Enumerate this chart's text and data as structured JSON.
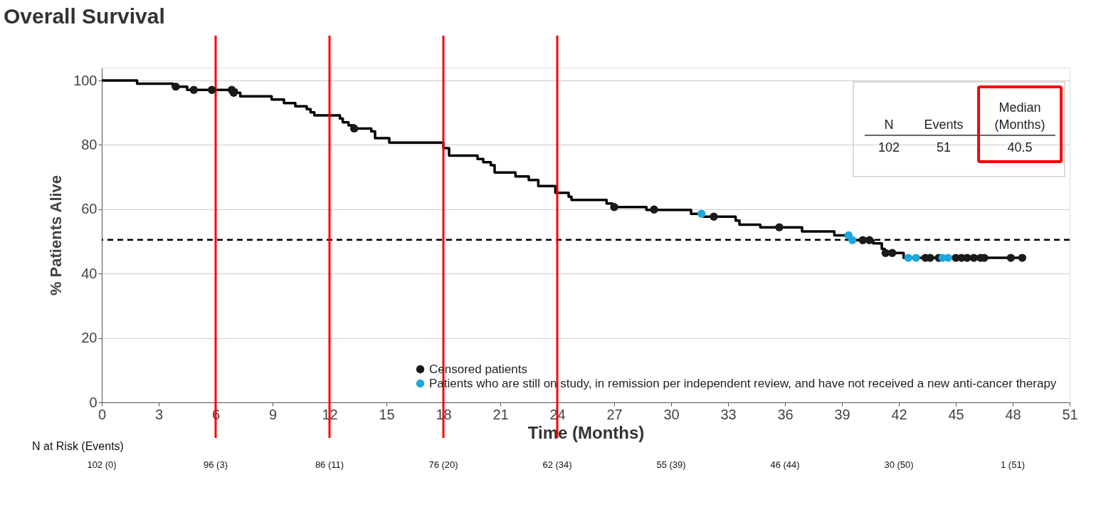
{
  "chart_data": {
    "type": "step",
    "title": "Overall Survival",
    "xlabel": "Time (Months)",
    "ylabel": "% Patients Alive",
    "xlim": [
      0,
      51
    ],
    "xticks": [
      0,
      3,
      6,
      9,
      12,
      15,
      18,
      21,
      24,
      27,
      30,
      33,
      36,
      39,
      42,
      45,
      48,
      51
    ],
    "ylim": [
      0,
      104
    ],
    "yticks": [
      0,
      20,
      40,
      60,
      80,
      100
    ],
    "grid": "y",
    "legend": "bottom right",
    "series": [
      {
        "color": "#000000",
        "x": [
          0,
          1.86,
          3.75,
          4.5,
          7.1,
          7.3,
          8.95,
          9.6,
          10.2,
          10.8,
          11.0,
          11.2,
          12.55,
          12.7,
          13.0,
          13.3,
          14.2,
          14.4,
          15.15,
          18.0,
          18.3,
          19.8,
          20.1,
          20.5,
          20.7,
          21.8,
          22.5,
          23.0,
          23.9,
          24.6,
          24.75,
          26.6,
          26.9,
          28.7,
          31.05,
          31.7,
          33.4,
          33.6,
          34.7,
          36.9,
          38.6,
          39.45,
          40.65,
          41.1,
          41.25,
          42.25,
          48.5
        ],
        "values": [
          100,
          99.0,
          98.1,
          97.1,
          96.2,
          95.1,
          94.1,
          93.0,
          92.0,
          91.1,
          90.1,
          89.2,
          88.2,
          87.0,
          86.1,
          85.1,
          84.2,
          82.1,
          80.7,
          79.0,
          76.7,
          75.6,
          74.6,
          73.7,
          71.4,
          70.2,
          69.1,
          67.2,
          65.1,
          63.9,
          62.9,
          61.8,
          60.7,
          59.8,
          58.6,
          57.7,
          56.5,
          55.2,
          54.4,
          53.1,
          51.9,
          50.4,
          49.4,
          47.7,
          46.4,
          44.9,
          44.9
        ]
      },
      {
        "type": "scatter",
        "name": "Censored patients",
        "color": "#1a1a1a",
        "x": [
          3.9,
          4.85,
          5.8,
          6.85,
          6.95,
          13.3,
          27.0,
          29.1,
          32.25,
          35.7,
          40.1,
          40.45,
          41.3,
          41.65,
          43.4,
          43.65,
          44.1,
          45.0,
          45.3,
          45.6,
          45.95,
          46.3,
          46.5,
          47.9,
          48.5
        ],
        "values": [
          98.1,
          97.1,
          97.1,
          97.1,
          96.2,
          85.1,
          60.7,
          59.9,
          57.7,
          54.4,
          50.4,
          50.4,
          46.4,
          46.4,
          44.9,
          44.9,
          44.9,
          44.9,
          44.9,
          44.9,
          44.9,
          44.9,
          44.9,
          44.9,
          44.9
        ]
      },
      {
        "type": "scatter",
        "name": "Patients who are still on study, in remission per independent review, and have not received a new anti-cancer therapy",
        "color": "#1ba9de",
        "x": [
          31.6,
          39.35,
          39.55,
          42.5,
          42.9,
          44.3,
          44.6
        ],
        "values": [
          58.6,
          51.9,
          50.4,
          44.9,
          44.9,
          44.9,
          44.9
        ]
      }
    ],
    "ref_lines": [
      {
        "axis": "y",
        "value": 50.5,
        "color": "#000000",
        "line_style": "dashed"
      },
      {
        "axis": "x",
        "value": 6,
        "color": "#ff0000"
      },
      {
        "axis": "x",
        "value": 12,
        "color": "#ff0000"
      },
      {
        "axis": "x",
        "value": 18,
        "color": "#ff0000"
      },
      {
        "axis": "x",
        "value": 24,
        "color": "#ff0000"
      }
    ],
    "annotations": [
      "N",
      "Events",
      "Median (Months)",
      "102",
      "51",
      "40.5",
      "N at Risk (Events)",
      "102 (0)",
      "96 (3)",
      "86 (11)",
      "76 (20)",
      "62 (34)",
      "55 (39)",
      "46 (44)",
      "30 (50)",
      "1 (51)"
    ]
  }
}
